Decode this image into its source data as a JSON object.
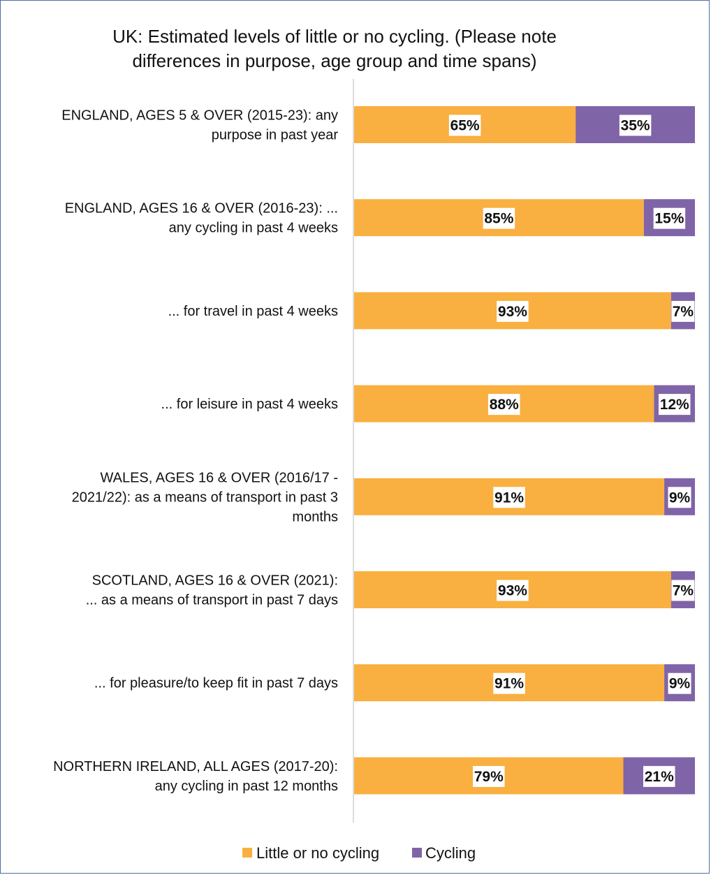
{
  "chart_data": {
    "type": "bar",
    "orientation": "horizontal",
    "stacked": true,
    "title": "UK: Estimated levels of little or no cycling. (Please note differences in purpose, age group and time spans)",
    "title_lines": [
      "UK: Estimated levels of little or no cycling. (Please note",
      "differences in purpose, age group and time spans)"
    ],
    "categories": [
      "ENGLAND, AGES 5 & OVER (2015-23): any purpose in past year",
      "ENGLAND, AGES 16 & OVER (2016-23): ... any cycling in past 4 weeks",
      "... for travel in past 4 weeks",
      "... for leisure in past 4 weeks",
      "WALES, AGES 16 & OVER (2016/17 - 2021/22): as a means of transport in past 3 months",
      "SCOTLAND, AGES 16 & OVER (2021): ... as a means of transport in past 7 days",
      "... for pleasure/to keep fit in past 7 days",
      "NORTHERN IRELAND, ALL AGES (2017-20): any cycling in past 12 months"
    ],
    "category_label_lines": [
      [
        "ENGLAND, AGES 5 & OVER (2015-23): any",
        "purpose in past year"
      ],
      [
        "ENGLAND, AGES 16 & OVER (2016-23):  ...",
        "any cycling in past 4 weeks"
      ],
      [
        "... for travel in past 4 weeks"
      ],
      [
        "... for leisure in past 4 weeks"
      ],
      [
        "WALES, AGES 16 & OVER (2016/17 -",
        "2021/22): as a means of transport in past 3",
        "months"
      ],
      [
        "SCOTLAND, AGES 16 & OVER (2021):",
        "... as a means of transport in past 7 days"
      ],
      [
        "... for pleasure/to keep fit in past 7 days"
      ],
      [
        "NORTHERN IRELAND, ALL AGES (2017-20):",
        "any cycling in past 12 months"
      ]
    ],
    "series": [
      {
        "name": "Little or no cycling",
        "color": "#f9b040",
        "values": [
          65,
          85,
          93,
          88,
          91,
          93,
          91,
          79
        ]
      },
      {
        "name": "Cycling",
        "color": "#8064a8",
        "values": [
          35,
          15,
          7,
          12,
          9,
          7,
          9,
          21
        ]
      }
    ],
    "value_suffix": "%",
    "xlim": [
      0,
      100
    ],
    "grid": false,
    "legend_position": "bottom"
  }
}
